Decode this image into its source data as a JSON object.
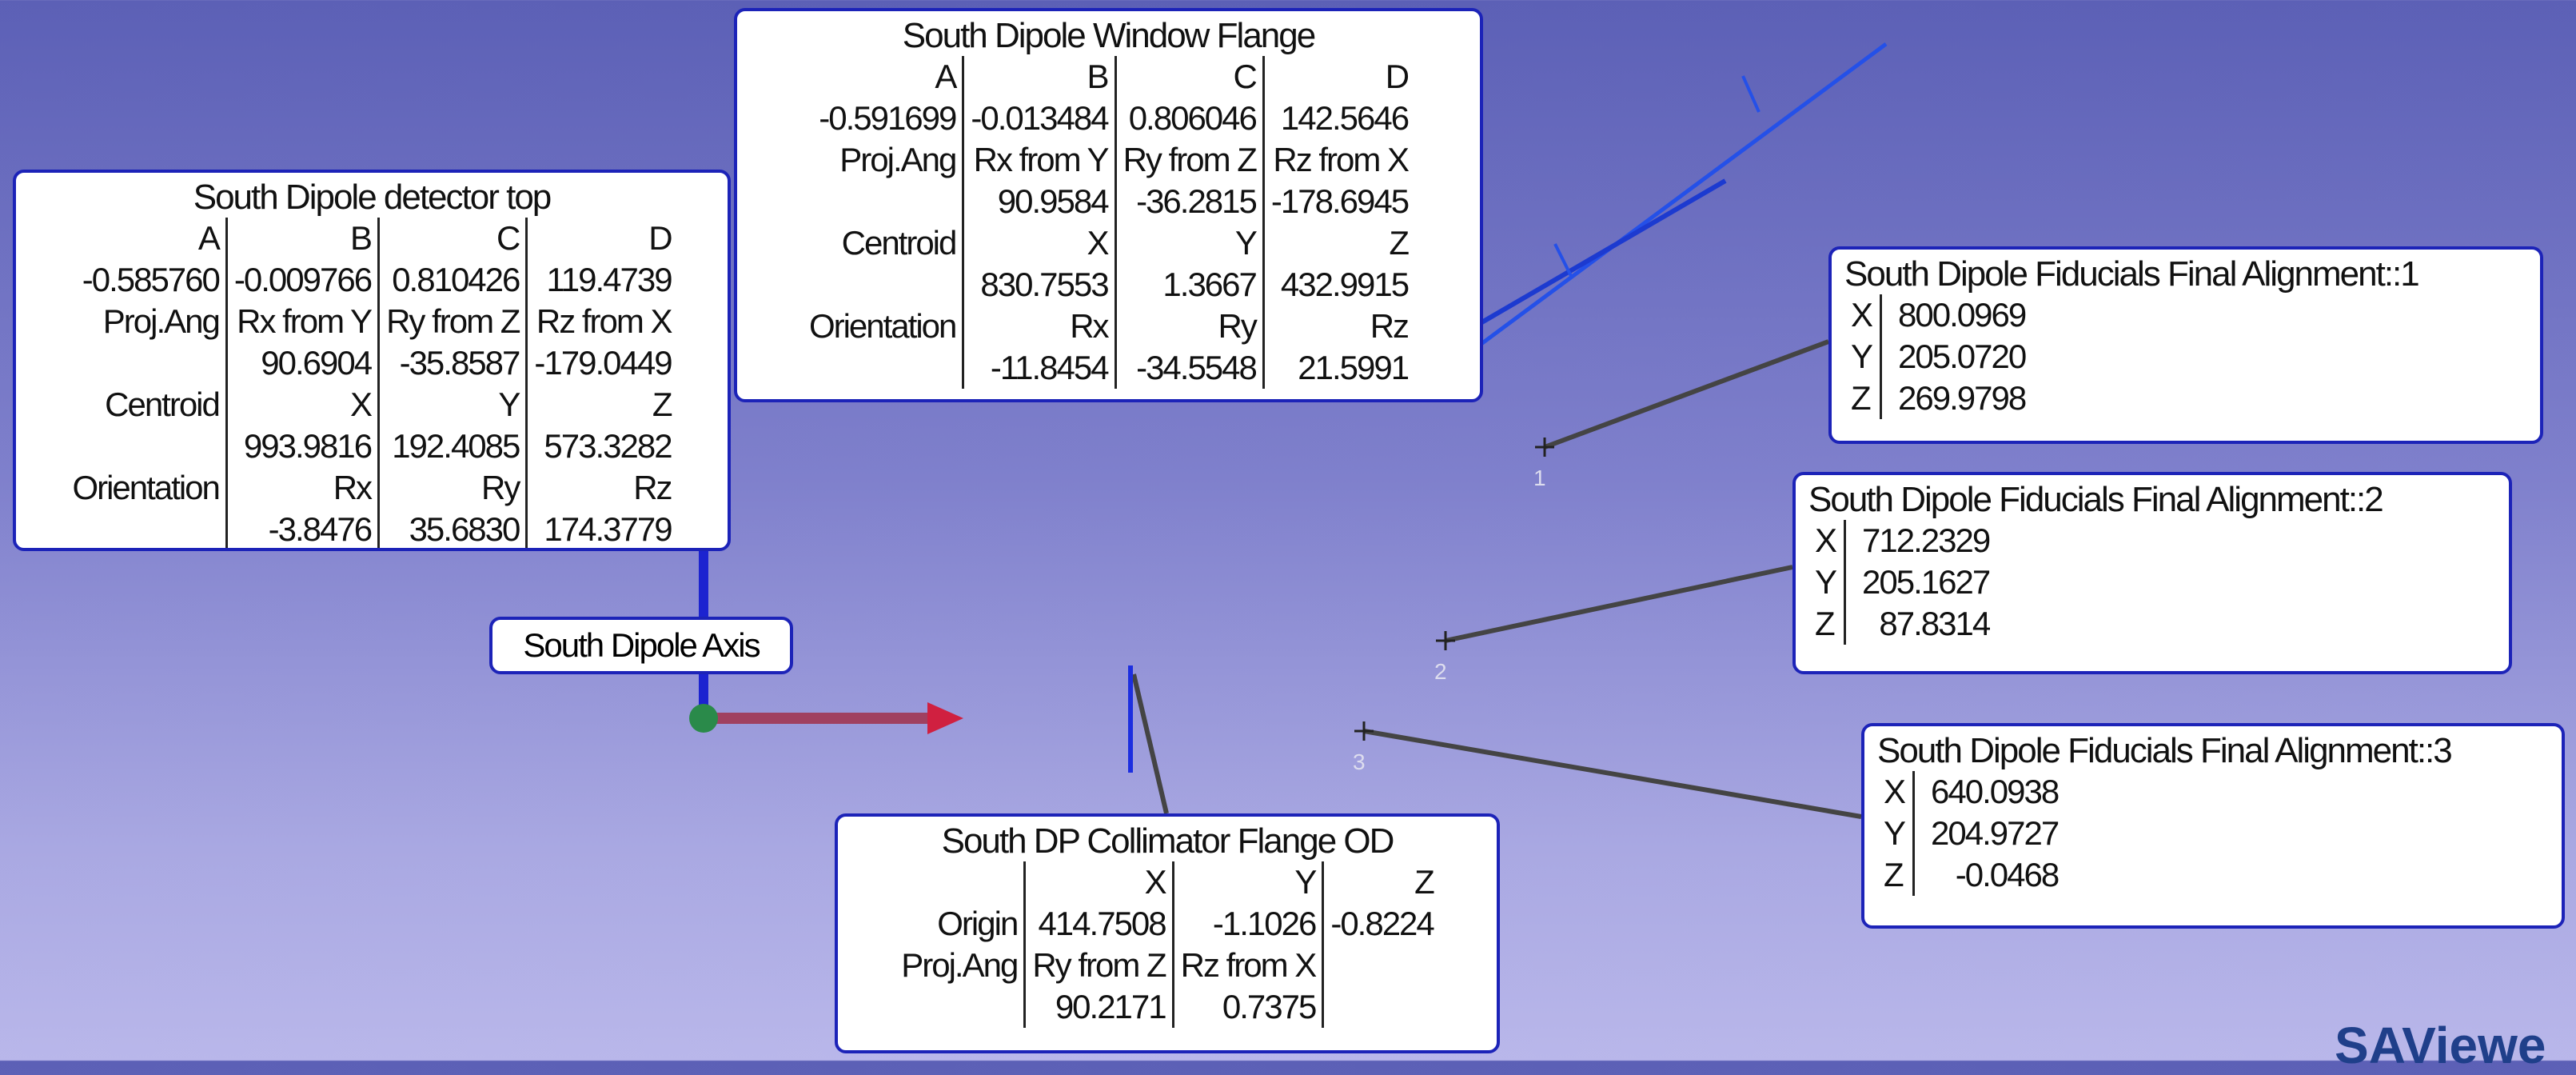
{
  "panels": [
    {
      "title": "South Dipole Window Flange",
      "rows": [
        [
          "A",
          "B",
          "C",
          "D"
        ],
        [
          "-0.591699",
          "-0.013484",
          "0.806046",
          "142.5646"
        ],
        [
          "Proj.Ang",
          "Rx from Y",
          "Ry from Z",
          "Rz from X"
        ],
        [
          null,
          "90.9584",
          "-36.2815",
          "-178.6945"
        ],
        [
          "Centroid",
          "X",
          "Y",
          "Z"
        ],
        [
          null,
          "830.7553",
          "1.3667",
          "432.9915"
        ],
        [
          "Orientation",
          "Rx",
          "Ry",
          "Rz"
        ],
        [
          null,
          "-11.8454",
          "-34.5548",
          "21.5991"
        ]
      ]
    },
    {
      "title": "South Dipole detector top",
      "rows": [
        [
          "A",
          "B",
          "C",
          "D"
        ],
        [
          "-0.585760",
          "-0.009766",
          "0.810426",
          "119.4739"
        ],
        [
          "Proj.Ang",
          "Rx from Y",
          "Ry from Z",
          "Rz from X"
        ],
        [
          null,
          "90.6904",
          "-35.8587",
          "-179.0449"
        ],
        [
          "Centroid",
          "X",
          "Y",
          "Z"
        ],
        [
          null,
          "993.9816",
          "192.4085",
          "573.3282"
        ],
        [
          "Orientation",
          "Rx",
          "Ry",
          "Rz"
        ],
        [
          null,
          "-3.8476",
          "35.6830",
          "174.3779"
        ]
      ]
    },
    {
      "title": "South DP Collimator Flange OD",
      "rows": [
        [
          null,
          "X",
          "Y",
          "Z"
        ],
        [
          "Origin",
          "414.7508",
          "-1.1026",
          "-0.8224"
        ],
        [
          "Proj.Ang",
          "Ry from Z",
          "Rz from X",
          null
        ],
        [
          null,
          "90.2171",
          "0.7375",
          null
        ]
      ]
    }
  ],
  "fiducials": [
    {
      "title": "South Dipole Fiducials Final Alignment::1",
      "rows": [
        [
          "X",
          "800.0969"
        ],
        [
          "Y",
          "205.0720"
        ],
        [
          "Z",
          "269.9798"
        ]
      ]
    },
    {
      "title": "South Dipole Fiducials Final Alignment::2",
      "rows": [
        [
          "X",
          "712.2329"
        ],
        [
          "Y",
          "205.1627"
        ],
        [
          "Z",
          "87.8314"
        ]
      ]
    },
    {
      "title": "South Dipole Fiducials Final Alignment::3",
      "rows": [
        [
          "X",
          "640.0938"
        ],
        [
          "Y",
          "204.9727"
        ],
        [
          "Z",
          "-0.0468"
        ]
      ]
    }
  ],
  "axis_label": "South Dipole Axis",
  "point_labels": [
    "1",
    "2",
    "3"
  ],
  "app_name": "SAViewe"
}
